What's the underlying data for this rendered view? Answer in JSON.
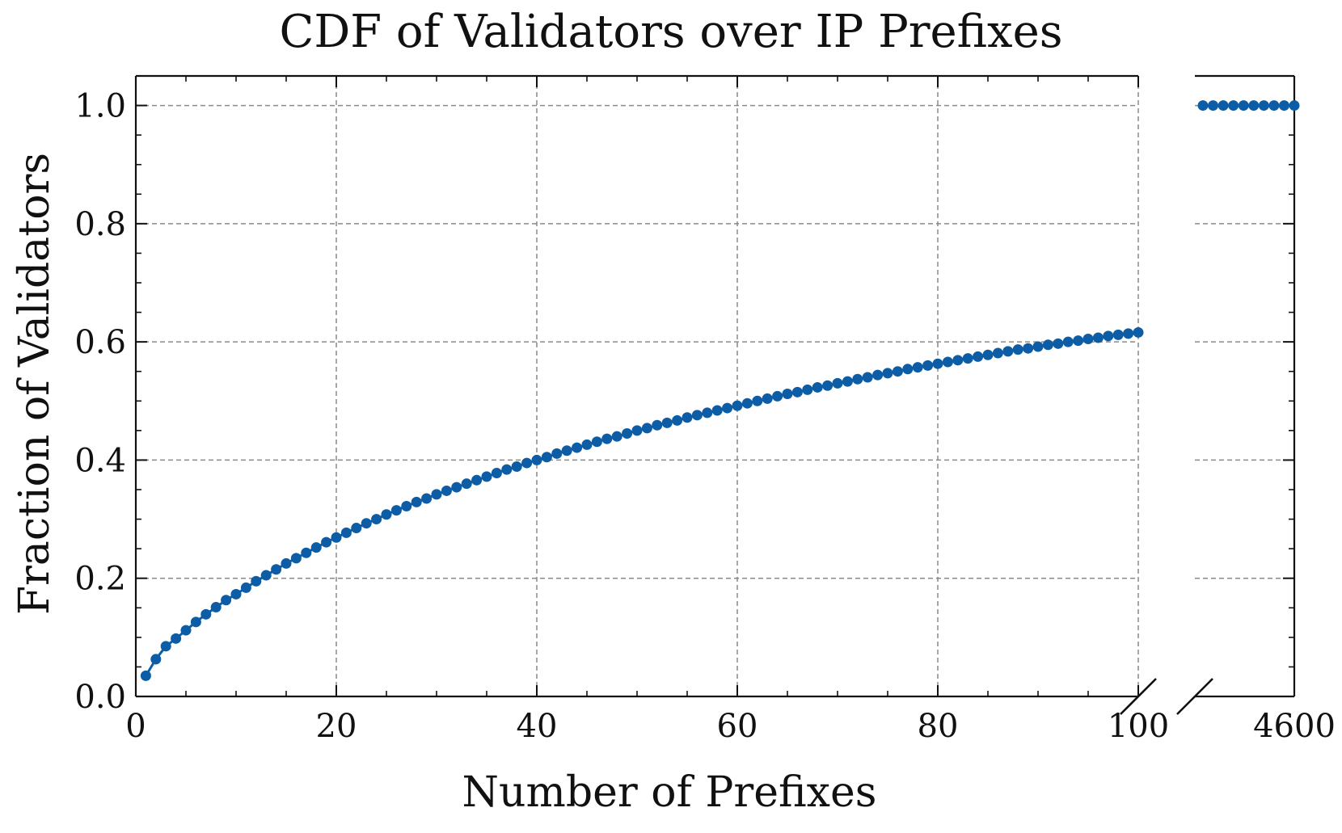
{
  "chart_data": {
    "type": "line",
    "title": "CDF of Validators over IP Prefixes",
    "xlabel": "Number of Prefixes",
    "ylabel": "Fraction of Validators",
    "xlim": [
      0,
      100
    ],
    "xlim_right": [
      100,
      4600
    ],
    "ylim": [
      0,
      1.05
    ],
    "x_ticks": [
      "0",
      "20",
      "40",
      "60",
      "80",
      "100"
    ],
    "x_ticks_right": [
      "4600"
    ],
    "y_ticks": [
      "0.0",
      "0.2",
      "0.4",
      "0.6",
      "0.8",
      "1.0"
    ],
    "grid": true,
    "broken_x_axis": true,
    "series": [
      {
        "color": "#0C5DA5",
        "x": [
          1,
          2,
          3,
          4,
          5,
          6,
          7,
          8,
          9,
          10,
          11,
          12,
          13,
          14,
          15,
          16,
          17,
          18,
          19,
          20,
          21,
          22,
          23,
          24,
          25,
          26,
          27,
          28,
          29,
          30,
          31,
          32,
          33,
          34,
          35,
          36,
          37,
          38,
          39,
          40,
          41,
          42,
          43,
          44,
          45,
          46,
          47,
          48,
          49,
          50,
          51,
          52,
          53,
          54,
          55,
          56,
          57,
          58,
          59,
          60,
          61,
          62,
          63,
          64,
          65,
          66,
          67,
          68,
          69,
          70,
          71,
          72,
          73,
          74,
          75,
          76,
          77,
          78,
          79,
          80,
          81,
          82,
          83,
          84,
          85,
          86,
          87,
          88,
          89,
          90,
          91,
          92,
          93,
          94,
          95,
          96,
          97,
          98,
          99,
          100
        ],
        "y": [
          0.035,
          0.063,
          0.085,
          0.098,
          0.112,
          0.126,
          0.139,
          0.151,
          0.163,
          0.173,
          0.184,
          0.195,
          0.205,
          0.215,
          0.225,
          0.234,
          0.243,
          0.252,
          0.261,
          0.269,
          0.277,
          0.285,
          0.293,
          0.3,
          0.308,
          0.315,
          0.322,
          0.329,
          0.335,
          0.342,
          0.348,
          0.354,
          0.36,
          0.366,
          0.372,
          0.378,
          0.384,
          0.389,
          0.395,
          0.4,
          0.405,
          0.411,
          0.416,
          0.421,
          0.426,
          0.431,
          0.436,
          0.44,
          0.445,
          0.45,
          0.454,
          0.459,
          0.463,
          0.467,
          0.472,
          0.476,
          0.48,
          0.484,
          0.488,
          0.492,
          0.496,
          0.5,
          0.504,
          0.508,
          0.512,
          0.515,
          0.519,
          0.523,
          0.526,
          0.53,
          0.533,
          0.537,
          0.54,
          0.544,
          0.547,
          0.55,
          0.554,
          0.557,
          0.56,
          0.563,
          0.566,
          0.569,
          0.572,
          0.575,
          0.578,
          0.581,
          0.584,
          0.587,
          0.589,
          0.592,
          0.595,
          0.597,
          0.6,
          0.602,
          0.605,
          0.607,
          0.61,
          0.612,
          0.614,
          0.616
        ]
      },
      {
        "color": "#0C5DA5",
        "x": [
          4590,
          4597,
          4604,
          4611,
          4618,
          4625,
          4632,
          4639,
          4646,
          4653
        ],
        "y": [
          1.0,
          1.0,
          1.0,
          1.0,
          1.0,
          1.0,
          1.0,
          1.0,
          1.0,
          1.0
        ]
      }
    ]
  },
  "style": {
    "series_color": "#0C5DA5",
    "grid_color": "#8a8a8a",
    "axis_color": "#111111"
  }
}
